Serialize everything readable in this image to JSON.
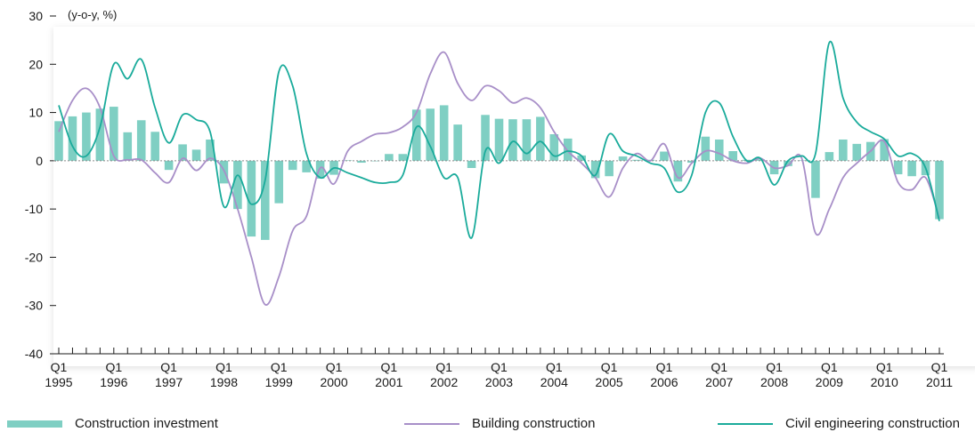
{
  "chart_data": {
    "type": "bar",
    "unit_label": "(y-o-y, %)",
    "ylim": [
      -40,
      30
    ],
    "y_ticks": [
      30,
      20,
      10,
      0,
      -10,
      -20,
      -30,
      -40
    ],
    "grid": false,
    "legend_position": "bottom",
    "x_ticks": [
      {
        "q": "Q1",
        "year": "1995"
      },
      {
        "q": "Q1",
        "year": "1996"
      },
      {
        "q": "Q1",
        "year": "1997"
      },
      {
        "q": "Q1",
        "year": "1998"
      },
      {
        "q": "Q1",
        "year": "1999"
      },
      {
        "q": "Q1",
        "year": "2000"
      },
      {
        "q": "Q1",
        "year": "2001"
      },
      {
        "q": "Q1",
        "year": "2002"
      },
      {
        "q": "Q1",
        "year": "2003"
      },
      {
        "q": "Q1",
        "year": "2004"
      },
      {
        "q": "Q1",
        "year": "2005"
      },
      {
        "q": "Q1",
        "year": "2006"
      },
      {
        "q": "Q1",
        "year": "2007"
      },
      {
        "q": "Q1",
        "year": "2008"
      },
      {
        "q": "Q1",
        "year": "2009"
      },
      {
        "q": "Q1",
        "year": "2010"
      },
      {
        "q": "Q1",
        "year": "2011"
      }
    ],
    "quarters": [
      "1995Q1",
      "1995Q2",
      "1995Q3",
      "1995Q4",
      "1996Q1",
      "1996Q2",
      "1996Q3",
      "1996Q4",
      "1997Q1",
      "1997Q2",
      "1997Q3",
      "1997Q4",
      "1998Q1",
      "1998Q2",
      "1998Q3",
      "1998Q4",
      "1999Q1",
      "1999Q2",
      "1999Q3",
      "1999Q4",
      "2000Q1",
      "2000Q2",
      "2000Q3",
      "2000Q4",
      "2001Q1",
      "2001Q2",
      "2001Q3",
      "2001Q4",
      "2002Q1",
      "2002Q2",
      "2002Q3",
      "2002Q4",
      "2003Q1",
      "2003Q2",
      "2003Q3",
      "2003Q4",
      "2004Q1",
      "2004Q2",
      "2004Q3",
      "2004Q4",
      "2005Q1",
      "2005Q2",
      "2005Q3",
      "2005Q4",
      "2006Q1",
      "2006Q2",
      "2006Q3",
      "2006Q4",
      "2007Q1",
      "2007Q2",
      "2007Q3",
      "2007Q4",
      "2008Q1",
      "2008Q2",
      "2008Q3",
      "2008Q4",
      "2009Q1",
      "2009Q2",
      "2009Q3",
      "2009Q4",
      "2010Q1",
      "2010Q2",
      "2010Q3",
      "2010Q4",
      "2011Q1"
    ],
    "series": [
      {
        "name": "Construction investment",
        "type": "bar",
        "color": "#7fcfc3",
        "values": [
          8.2,
          9.2,
          10.0,
          10.8,
          11.2,
          5.9,
          8.4,
          6.0,
          -1.9,
          3.4,
          2.3,
          4.4,
          -4.7,
          -10.0,
          -15.7,
          -16.4,
          -8.8,
          -1.9,
          -2.4,
          -3.7,
          -2.9,
          0.1,
          -0.4,
          0.0,
          1.4,
          1.4,
          10.6,
          10.8,
          11.5,
          7.5,
          -1.5,
          9.5,
          8.7,
          8.6,
          8.6,
          9.1,
          5.5,
          4.6,
          1.1,
          -3.6,
          -3.2,
          0.9,
          0.2,
          0.2,
          1.9,
          -4.3,
          -0.4,
          5.0,
          4.4,
          2.0,
          0.2,
          0.3,
          -2.8,
          -1.1,
          0.1,
          -7.7,
          1.8,
          4.4,
          3.5,
          3.9,
          4.5,
          -2.8,
          -3.2,
          -3.0,
          -12.1
        ]
      },
      {
        "name": "Building construction",
        "type": "line",
        "color": "#a88fc8",
        "values": [
          6.0,
          12.5,
          15.0,
          11.0,
          1.0,
          0.2,
          0.2,
          -2.5,
          -4.5,
          0.5,
          -2.0,
          0.5,
          -2.0,
          -10.0,
          -20.0,
          -29.8,
          -24.0,
          -14.5,
          -11.5,
          -1.5,
          -4.8,
          2.0,
          4.0,
          5.5,
          5.8,
          7.0,
          10.0,
          18.0,
          22.5,
          16.0,
          12.5,
          15.5,
          14.5,
          12.0,
          13.0,
          11.0,
          6.0,
          2.0,
          -0.5,
          -3.5,
          -7.5,
          -1.5,
          1.5,
          0.0,
          3.5,
          -3.5,
          -0.5,
          2.0,
          1.5,
          0.0,
          -0.5,
          0.5,
          -1.5,
          -1.0,
          0.5,
          -15.0,
          -10.0,
          -3.5,
          -0.5,
          2.0,
          4.0,
          -4.5,
          -6.0,
          -3.5,
          -12.0
        ]
      },
      {
        "name": "Civil engineering construction",
        "type": "line",
        "color": "#1aab9b",
        "values": [
          11.5,
          3.0,
          1.0,
          7.0,
          20.0,
          17.0,
          21.0,
          11.0,
          3.7,
          9.5,
          8.5,
          6.0,
          -9.5,
          -3.0,
          -9.0,
          -4.0,
          18.5,
          15.5,
          1.5,
          -3.5,
          -1.5,
          -2.5,
          -3.5,
          -4.5,
          -4.5,
          -3.0,
          7.0,
          3.0,
          -3.5,
          -3.5,
          -16.0,
          2.0,
          -0.5,
          4.0,
          1.5,
          4.0,
          1.0,
          2.0,
          1.0,
          -3.0,
          5.5,
          2.0,
          1.0,
          -0.5,
          -1.5,
          -6.5,
          -3.0,
          10.0,
          12.0,
          5.0,
          0.0,
          0.5,
          -5.0,
          0.0,
          1.0,
          1.5,
          24.5,
          13.0,
          8.0,
          6.0,
          4.5,
          1.0,
          1.5,
          -1.5,
          -12.5
        ]
      }
    ]
  }
}
